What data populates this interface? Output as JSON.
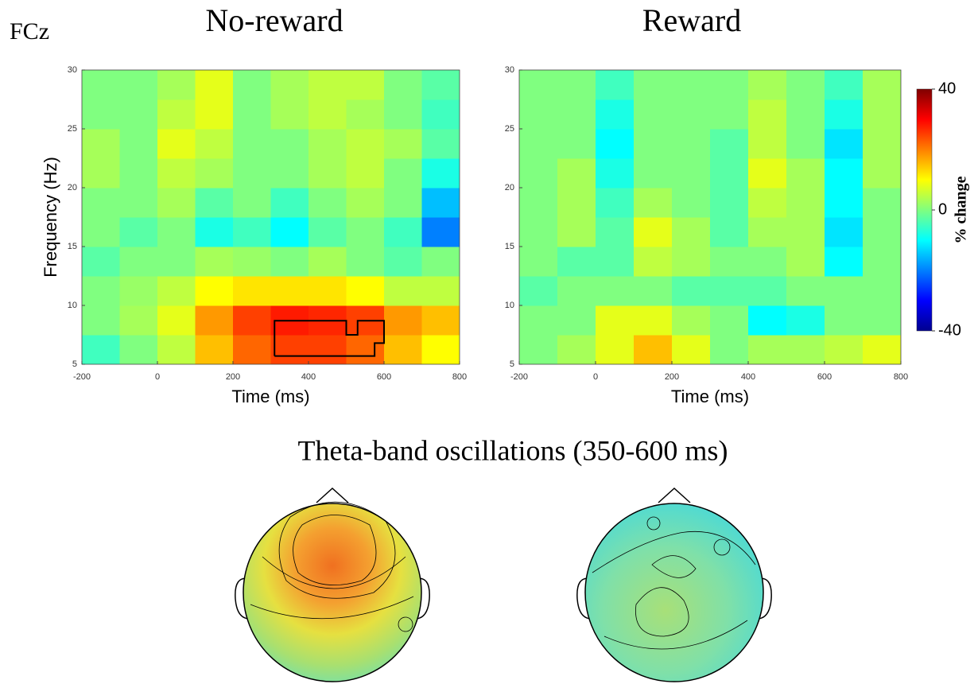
{
  "figure_label": "FCz",
  "section_title": "Theta-band oscillations (350-600 ms)",
  "colorbar": {
    "label": "% change",
    "lim": [
      -40,
      40
    ],
    "ticks": [
      40,
      0,
      -40
    ]
  },
  "chart_data": [
    {
      "type": "heatmap",
      "title": "No-reward",
      "xlabel": "Time (ms)",
      "ylabel": "Frequency (Hz)",
      "xlim": [
        -200,
        800
      ],
      "ylim": [
        5,
        30
      ],
      "xticks": [
        -200,
        0,
        200,
        400,
        600,
        800
      ],
      "yticks": [
        5,
        10,
        15,
        20,
        25,
        30
      ],
      "x": [
        -150,
        -50,
        50,
        150,
        250,
        350,
        450,
        550,
        650,
        750
      ],
      "y": [
        6.25,
        8.75,
        11.25,
        13.75,
        16.25,
        18.75,
        21.25,
        23.75,
        26.25,
        28.75
      ],
      "z": [
        [
          -5,
          0,
          5,
          15,
          22,
          25,
          25,
          22,
          15,
          10
        ],
        [
          0,
          3,
          8,
          18,
          25,
          28,
          27,
          25,
          18,
          15
        ],
        [
          0,
          2,
          5,
          10,
          12,
          12,
          12,
          10,
          5,
          5
        ],
        [
          -3,
          0,
          0,
          3,
          2,
          0,
          3,
          0,
          -3,
          0
        ],
        [
          0,
          -3,
          0,
          -8,
          -5,
          -10,
          -3,
          0,
          -5,
          -20
        ],
        [
          0,
          0,
          3,
          -3,
          0,
          -5,
          0,
          3,
          0,
          -15
        ],
        [
          3,
          0,
          5,
          3,
          0,
          0,
          3,
          5,
          0,
          -8
        ],
        [
          3,
          0,
          8,
          5,
          0,
          0,
          3,
          5,
          3,
          -3
        ],
        [
          0,
          0,
          5,
          8,
          0,
          3,
          5,
          3,
          0,
          -5
        ],
        [
          0,
          0,
          3,
          8,
          0,
          3,
          5,
          5,
          0,
          -3
        ]
      ],
      "cluster": {
        "x": [
          310,
          310,
          500,
          500,
          530,
          530,
          600,
          600,
          575,
          575,
          310
        ],
        "y": [
          5.7,
          8.7,
          8.7,
          7.5,
          7.5,
          8.7,
          8.7,
          6.8,
          6.8,
          5.7,
          5.7
        ]
      }
    },
    {
      "type": "heatmap",
      "title": "Reward",
      "xlabel": "Time (ms)",
      "xlim": [
        -200,
        800
      ],
      "ylim": [
        5,
        30
      ],
      "xticks": [
        -200,
        0,
        200,
        400,
        600,
        800
      ],
      "yticks": [
        5,
        10,
        15,
        20,
        25,
        30
      ],
      "x": [
        -150,
        -50,
        50,
        150,
        250,
        350,
        450,
        550,
        650,
        750
      ],
      "y": [
        6.25,
        8.75,
        11.25,
        13.75,
        16.25,
        18.75,
        21.25,
        23.75,
        26.25,
        28.75
      ],
      "z": [
        [
          0,
          3,
          8,
          15,
          8,
          0,
          3,
          3,
          5,
          8
        ],
        [
          0,
          0,
          8,
          8,
          3,
          0,
          -10,
          -8,
          0,
          0
        ],
        [
          -3,
          0,
          0,
          0,
          -3,
          -3,
          -3,
          0,
          0,
          0
        ],
        [
          0,
          -3,
          -3,
          5,
          3,
          0,
          0,
          3,
          -10,
          0
        ],
        [
          0,
          3,
          -3,
          8,
          3,
          -3,
          3,
          3,
          -12,
          0
        ],
        [
          0,
          3,
          -5,
          3,
          0,
          -3,
          5,
          3,
          -10,
          0
        ],
        [
          0,
          3,
          -8,
          0,
          0,
          -3,
          8,
          3,
          -10,
          3
        ],
        [
          0,
          0,
          -10,
          0,
          0,
          -3,
          5,
          0,
          -12,
          3
        ],
        [
          0,
          0,
          -8,
          0,
          0,
          0,
          5,
          0,
          -8,
          3
        ],
        [
          0,
          0,
          -5,
          0,
          0,
          0,
          3,
          0,
          -5,
          3
        ]
      ]
    }
  ]
}
